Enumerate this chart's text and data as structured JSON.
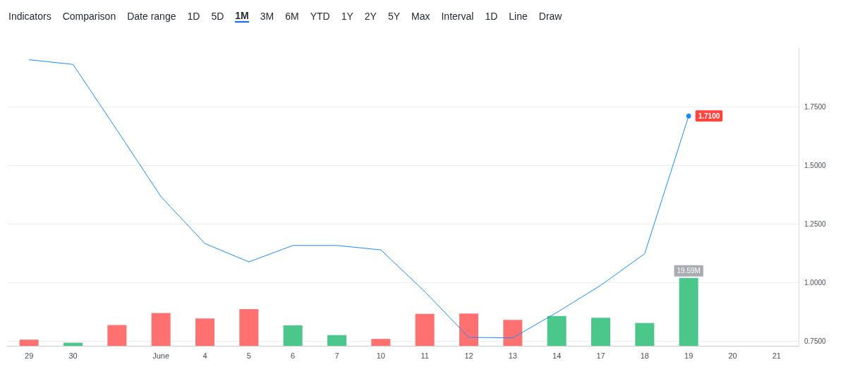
{
  "chart_data": {
    "type": "line",
    "annotations": [
      "Indicators",
      "Comparison",
      "Date range",
      "1D",
      "5D",
      "1M",
      "3M",
      "6M",
      "YTD",
      "1Y",
      "2Y",
      "5Y",
      "Max",
      "Interval",
      "1D",
      "Line",
      "Draw"
    ],
    "categories": [
      "29",
      "30",
      null,
      "June",
      "4",
      "5",
      "6",
      "7",
      "10",
      "11",
      "12",
      "13",
      "14",
      "17",
      "18",
      "19",
      "20",
      "21"
    ],
    "series": [
      {
        "color": "#1a8cff",
        "values": [
          1.95,
          1.93,
          1.65,
          1.366,
          1.166,
          1.088,
          1.158,
          1.158,
          1.139,
          0.961,
          0.766,
          0.764,
          0.872,
          0.988,
          1.123,
          1.71,
          null,
          null
        ],
        "value_labels": [
          null,
          null,
          null,
          null,
          null,
          null,
          null,
          null,
          null,
          null,
          null,
          null,
          null,
          null,
          null,
          "1.7100",
          null,
          null
        ]
      },
      {
        "type": "bar",
        "axis": "y2",
        "colors": [
          "#ff7171",
          "#4bc78b",
          "#ff7171",
          "#ff7171",
          "#ff7171",
          "#ff7171",
          "#4bc78b",
          "#4bc78b",
          "#ff7171",
          "#ff7171",
          "#ff7171",
          "#ff7171",
          "#4bc78b",
          "#4bc78b",
          "#4bc78b",
          "#4bc78b",
          "#4bc78b",
          "#4bc78b"
        ],
        "values": [
          1.8,
          0.9,
          6.0,
          9.5,
          7.9,
          10.6,
          5.9,
          3.1,
          2.0,
          9.2,
          9.3,
          7.5,
          8.6,
          8.1,
          6.6,
          19.59,
          null,
          null
        ],
        "value_labels": [
          null,
          null,
          null,
          null,
          null,
          null,
          null,
          null,
          null,
          null,
          null,
          null,
          null,
          null,
          null,
          "19.59M",
          null,
          null
        ]
      }
    ],
    "ylim": [
      0.73,
      2.0
    ],
    "yticks": [
      {
        "value": 0.75,
        "label": "0.7500"
      },
      {
        "value": 1.0,
        "label": "1.0000"
      },
      {
        "value": 1.25,
        "label": "1.2500"
      },
      {
        "value": 1.5,
        "label": "1.5000"
      },
      {
        "value": 1.75,
        "label": "1.7500"
      }
    ],
    "y2lim": [
      0,
      86
    ],
    "grid": "y",
    "marker": "none"
  }
}
